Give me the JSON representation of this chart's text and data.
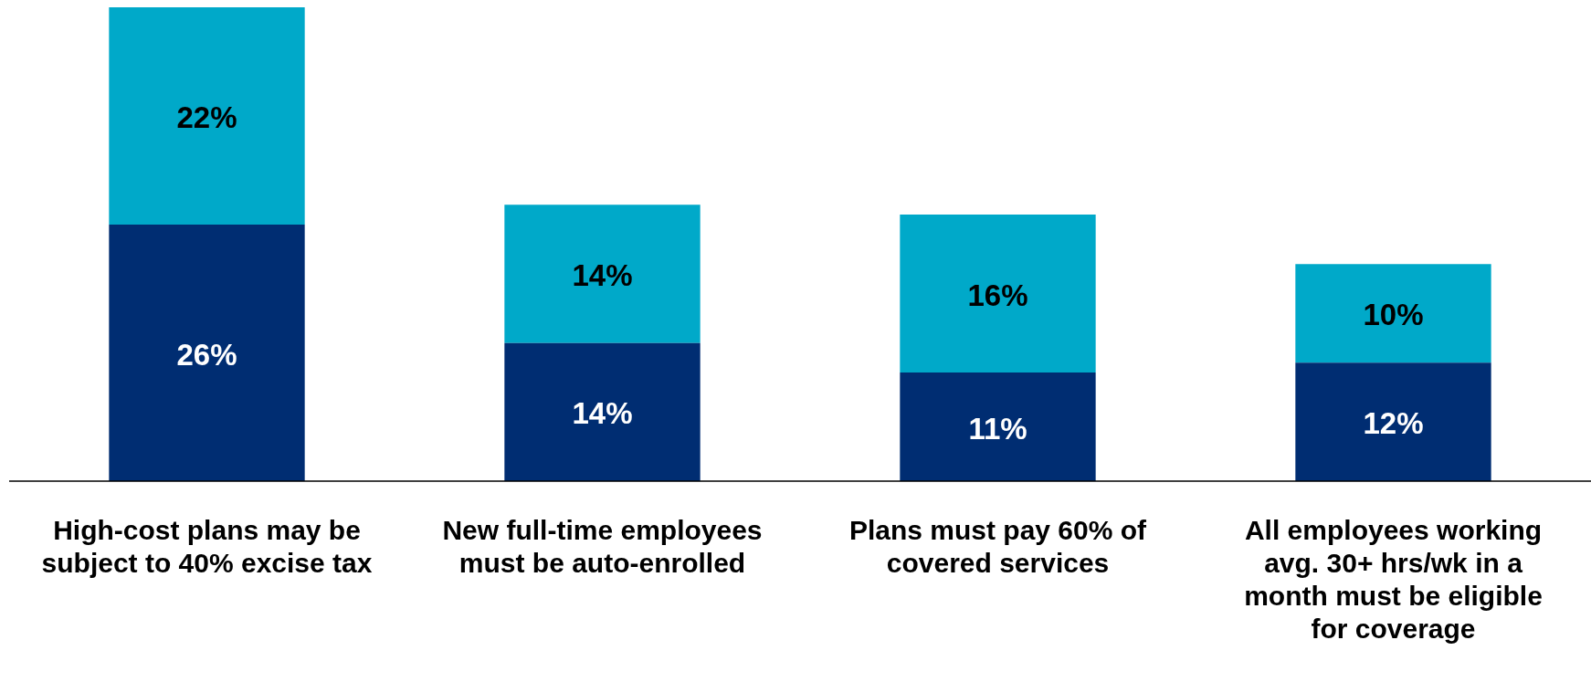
{
  "chart_data": {
    "type": "bar",
    "stacked": true,
    "legend": false,
    "grid": false,
    "tick_labels": "x",
    "categories": [
      "High-cost plans may be subject to 40% excise tax",
      "New full-time employees must be auto-enrolled",
      "Plans must pay 60% of covered services",
      "All employees working avg. 30+ hrs/wk in a month must be eligible for coverage"
    ],
    "series": [
      {
        "color": "#002d72",
        "values": [
          26,
          14,
          11,
          12
        ],
        "value_labels": [
          "26%",
          "14%",
          "11%",
          "12%"
        ]
      },
      {
        "color": "#00a9c9",
        "values": [
          22,
          14,
          16,
          10
        ],
        "value_labels": [
          "22%",
          "14%",
          "16%",
          "10%"
        ]
      }
    ]
  }
}
